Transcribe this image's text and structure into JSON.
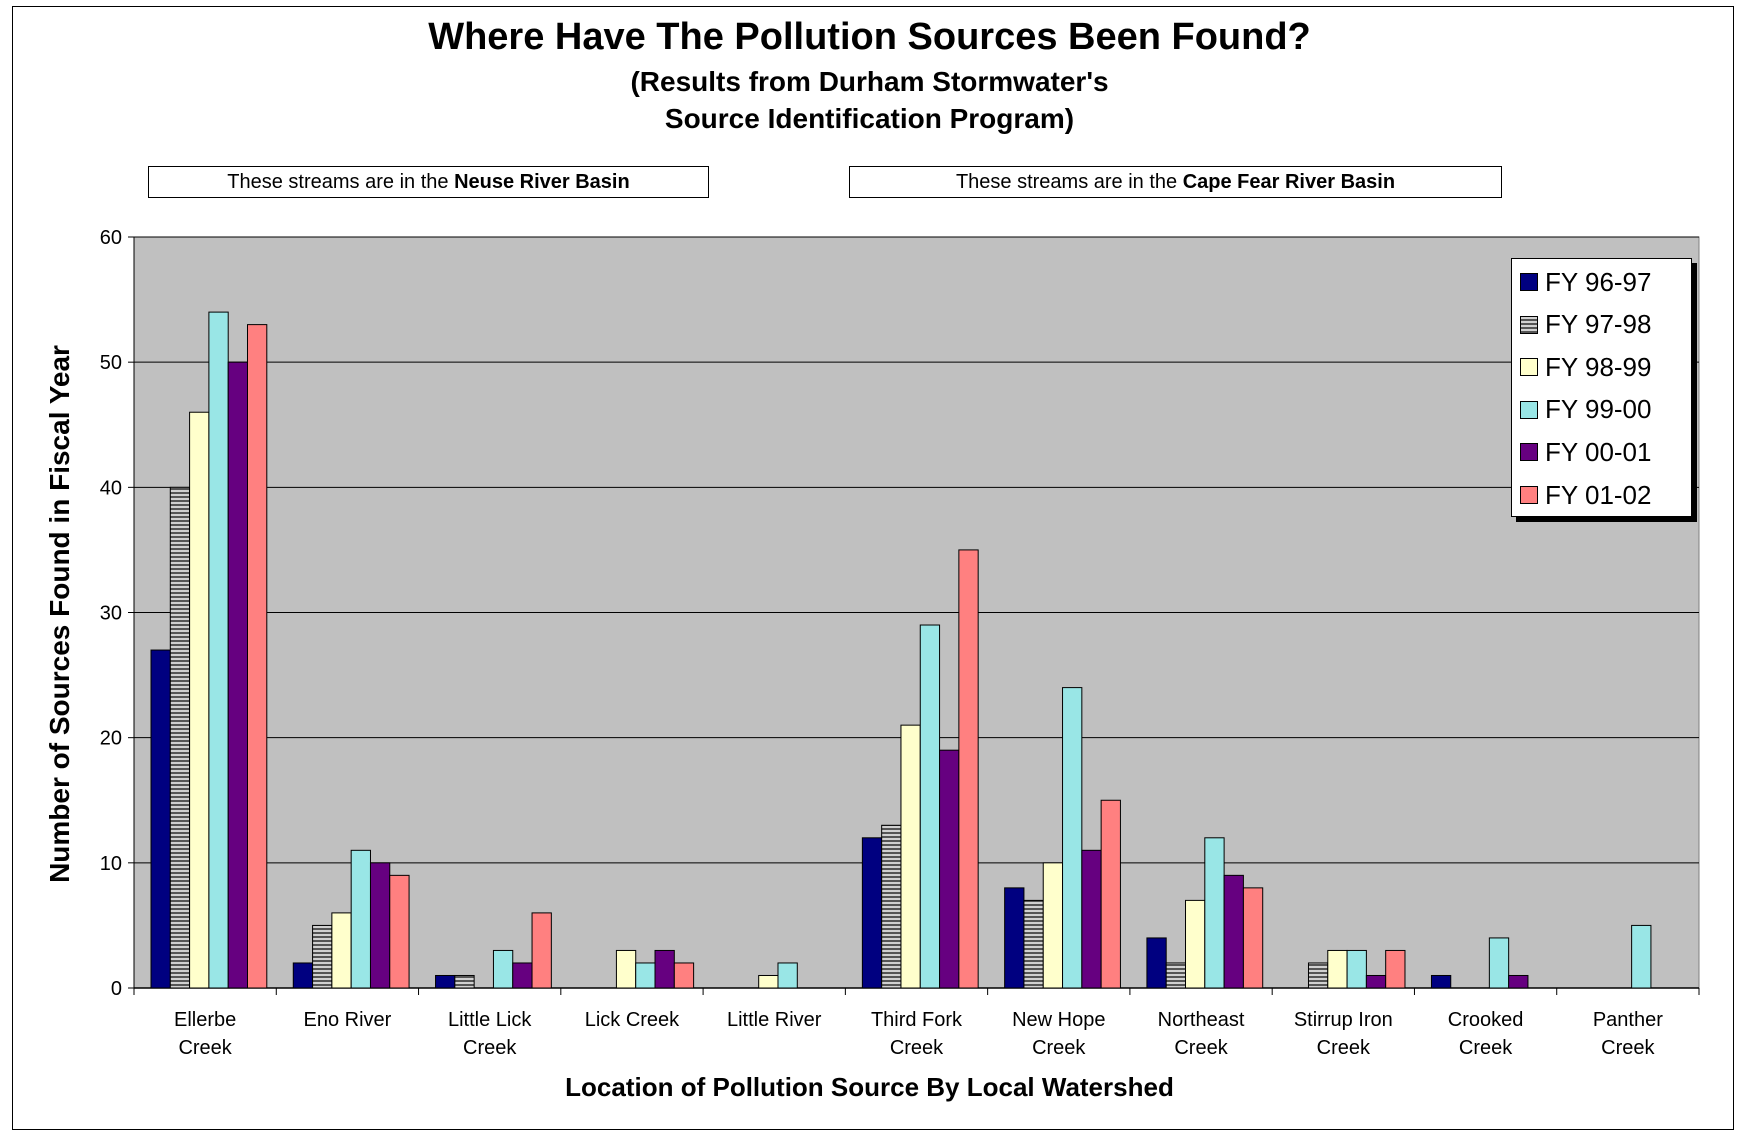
{
  "title": "Where Have The Pollution Sources Been Found?",
  "subtitle_line1": "(Results from Durham Stormwater's",
  "subtitle_line2": "Source Identification Program)",
  "basin_labels": {
    "neuse_prefix": "These streams are in the ",
    "neuse_bold": "Neuse River Basin",
    "cape_prefix": "These streams are in the ",
    "cape_bold": "Cape Fear River Basin"
  },
  "colors": {
    "plot_background": "#c0c0c0",
    "FY 96-97": "#000080",
    "FY 97-98": "#808080",
    "FY 98-99": "#ffffcc",
    "FY 99-00": "#99e6e6",
    "FY 00-01": "#660080",
    "FY 01-02": "#ff8080"
  },
  "chart_data": {
    "type": "bar",
    "title": "Where Have The Pollution Sources Been Found?",
    "xlabel": "Location of Pollution Source By Local Watershed",
    "ylabel": "Number of Sources Found in Fiscal Year",
    "ylim": [
      0,
      60
    ],
    "yticks": [
      0,
      10,
      20,
      30,
      40,
      50,
      60
    ],
    "grid": true,
    "legend_position": "top-right",
    "categories": [
      [
        "Ellerbe",
        "Creek"
      ],
      [
        "Eno River"
      ],
      [
        "Little Lick",
        "Creek"
      ],
      [
        "Lick Creek"
      ],
      [
        "Little River"
      ],
      [
        "Third Fork",
        "Creek"
      ],
      [
        "New Hope",
        "Creek"
      ],
      [
        "Northeast",
        "Creek"
      ],
      [
        "Stirrup Iron",
        "Creek"
      ],
      [
        "Crooked",
        "Creek"
      ],
      [
        "Panther",
        "Creek"
      ]
    ],
    "series": [
      {
        "name": "FY 96-97",
        "values": [
          27,
          2,
          1,
          0,
          0,
          12,
          8,
          4,
          0,
          1,
          0
        ]
      },
      {
        "name": "FY 97-98",
        "values": [
          40,
          5,
          1,
          0,
          0,
          13,
          7,
          2,
          2,
          0,
          0
        ]
      },
      {
        "name": "FY 98-99",
        "values": [
          46,
          6,
          0,
          3,
          1,
          21,
          10,
          7,
          3,
          0,
          0
        ]
      },
      {
        "name": "FY 99-00",
        "values": [
          54,
          11,
          3,
          2,
          2,
          29,
          24,
          12,
          3,
          4,
          5
        ]
      },
      {
        "name": "FY 00-01",
        "values": [
          50,
          10,
          2,
          3,
          0,
          19,
          11,
          9,
          1,
          1,
          0
        ]
      },
      {
        "name": "FY 01-02",
        "values": [
          53,
          9,
          6,
          2,
          0,
          35,
          15,
          8,
          3,
          0,
          0
        ]
      }
    ]
  }
}
